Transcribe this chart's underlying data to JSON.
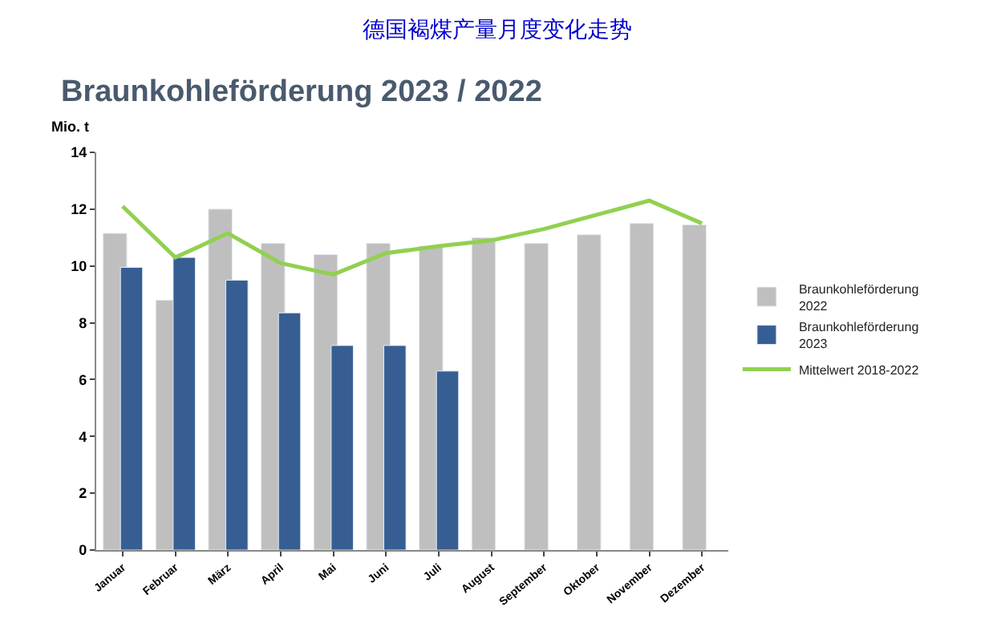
{
  "chart_data": {
    "type": "bar",
    "title": "德国褐煤产量月度变化走势",
    "subtitle": "Braunkohleförderung 2023 / 2022",
    "ylabel": "Mio. t",
    "categories": [
      "Januar",
      "Februar",
      "März",
      "April",
      "Mai",
      "Juni",
      "Juli",
      "August",
      "September",
      "Oktober",
      "November",
      "Dezember"
    ],
    "series": [
      {
        "name": "Braunkohleförderung 2022",
        "color": "#bfbfbf",
        "values": [
          11.15,
          8.8,
          12.0,
          10.8,
          10.4,
          10.8,
          10.7,
          11.0,
          10.8,
          11.1,
          11.5,
          11.45
        ]
      },
      {
        "name": "Braunkohleförderung 2023",
        "color": "#375e93",
        "values": [
          9.95,
          10.3,
          9.5,
          8.35,
          7.2,
          7.2,
          6.3,
          null,
          null,
          null,
          null,
          null
        ]
      },
      {
        "name": "Mittelwert 2018-2022",
        "type": "line",
        "color": "#92d050",
        "values": [
          12.1,
          10.3,
          11.15,
          10.1,
          9.7,
          10.45,
          10.7,
          10.9,
          11.3,
          11.8,
          12.3,
          11.5
        ]
      }
    ],
    "ylim": [
      0,
      14
    ],
    "yticks": [
      0,
      2,
      4,
      6,
      8,
      10,
      12,
      14
    ],
    "legend": "right",
    "marker": "none"
  }
}
